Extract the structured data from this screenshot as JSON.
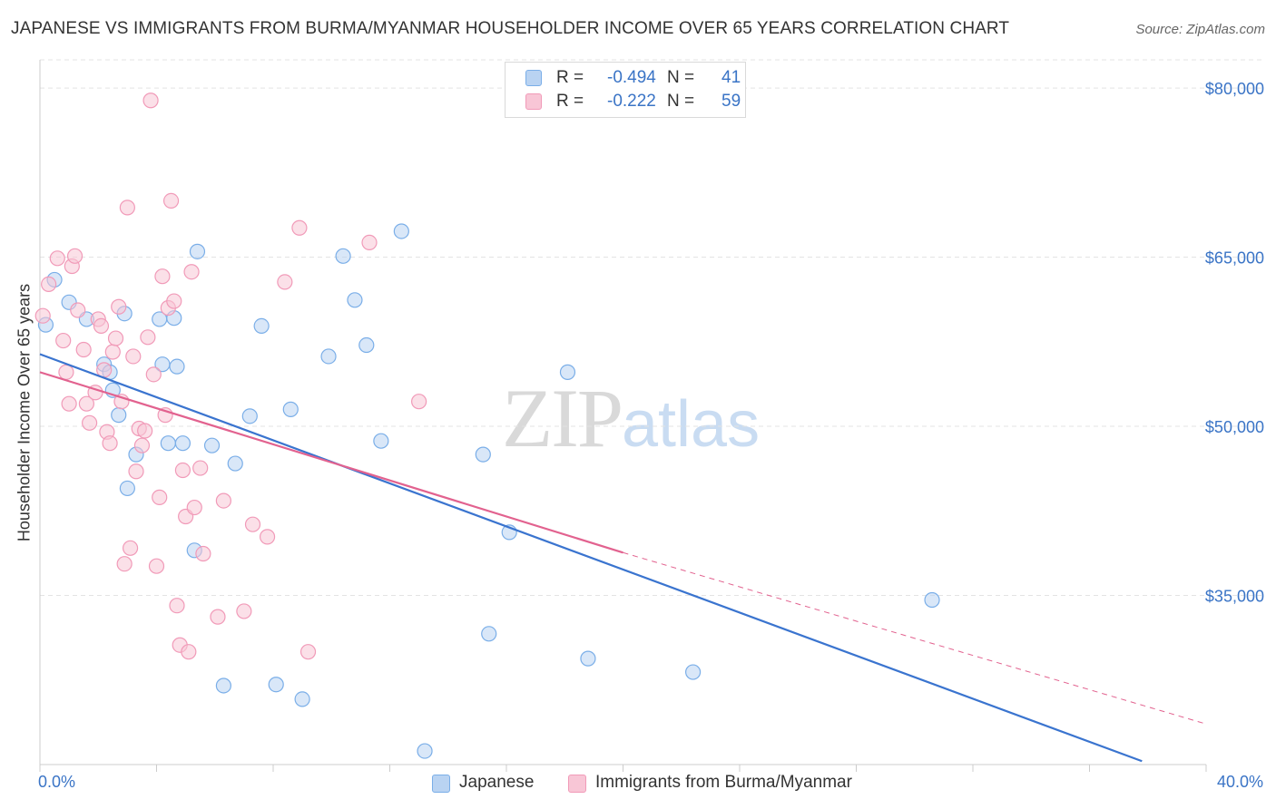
{
  "title": "JAPANESE VS IMMIGRANTS FROM BURMA/MYANMAR HOUSEHOLDER INCOME OVER 65 YEARS CORRELATION CHART",
  "source": "Source: ZipAtlas.com",
  "watermark": {
    "zip": "ZIP",
    "atlas": "atlas"
  },
  "stats_box": {
    "rows": [
      {
        "r_label": "R = ",
        "r_value": "-0.494",
        "n_label": "N = ",
        "n_value": "41",
        "color": "#7aaee8"
      },
      {
        "r_label": "R = ",
        "r_value": "-0.222",
        "n_label": "N = ",
        "n_value": "59",
        "color": "#f19ab8"
      }
    ]
  },
  "colors": {
    "japanese_fill": "#b9d3f2",
    "japanese_stroke": "#7aaee8",
    "japanese_line": "#3a74cf",
    "burma_fill": "#f8c6d6",
    "burma_stroke": "#f19ab8",
    "burma_line": "#e2628f",
    "axis_text": "#3a74c6",
    "grid": "#e3e3e3"
  },
  "chart_data": {
    "type": "scatter",
    "title": "JAPANESE VS IMMIGRANTS FROM BURMA/MYANMAR HOUSEHOLDER INCOME OVER 65 YEARS CORRELATION CHART",
    "xlabel": "",
    "ylabel": "Householder Income Over 65 years",
    "xlim": [
      0,
      40
    ],
    "ylim": [
      20000,
      82500
    ],
    "x_tick_labels": [
      "0.0%",
      "40.0%"
    ],
    "y_ticks": [
      35000,
      50000,
      65000,
      80000
    ],
    "y_tick_labels": [
      "$35,000",
      "$50,000",
      "$65,000",
      "$80,000"
    ],
    "grid": true,
    "legend": "bottom",
    "series": [
      {
        "name": "Japanese",
        "points": [
          [
            0.2,
            59000
          ],
          [
            0.5,
            63000
          ],
          [
            1.0,
            61000
          ],
          [
            1.6,
            59500
          ],
          [
            2.2,
            55500
          ],
          [
            2.4,
            54800
          ],
          [
            2.5,
            53200
          ],
          [
            2.7,
            51000
          ],
          [
            2.9,
            60000
          ],
          [
            3.0,
            44500
          ],
          [
            3.3,
            47500
          ],
          [
            4.1,
            59500
          ],
          [
            4.2,
            55500
          ],
          [
            4.4,
            48500
          ],
          [
            4.6,
            59600
          ],
          [
            4.7,
            55300
          ],
          [
            4.9,
            48500
          ],
          [
            5.3,
            39000
          ],
          [
            5.4,
            65500
          ],
          [
            5.9,
            48300
          ],
          [
            6.3,
            27000
          ],
          [
            6.7,
            46700
          ],
          [
            7.2,
            50900
          ],
          [
            7.6,
            58900
          ],
          [
            8.1,
            27100
          ],
          [
            8.6,
            51500
          ],
          [
            9.0,
            25800
          ],
          [
            9.9,
            56200
          ],
          [
            10.4,
            65100
          ],
          [
            10.8,
            61200
          ],
          [
            11.2,
            57200
          ],
          [
            11.7,
            48700
          ],
          [
            12.4,
            67300
          ],
          [
            13.2,
            21200
          ],
          [
            15.2,
            47500
          ],
          [
            15.4,
            31600
          ],
          [
            16.1,
            40600
          ],
          [
            18.1,
            54800
          ],
          [
            18.8,
            29400
          ],
          [
            22.4,
            28200
          ],
          [
            30.6,
            34600
          ]
        ]
      },
      {
        "name": "Immigrants from Burma/Myanmar",
        "points": [
          [
            0.1,
            59800
          ],
          [
            0.3,
            62600
          ],
          [
            0.6,
            64900
          ],
          [
            0.8,
            57600
          ],
          [
            0.9,
            54800
          ],
          [
            1.0,
            52000
          ],
          [
            1.1,
            64200
          ],
          [
            1.2,
            65100
          ],
          [
            1.3,
            60300
          ],
          [
            1.5,
            56800
          ],
          [
            1.6,
            52000
          ],
          [
            1.7,
            50300
          ],
          [
            1.9,
            53000
          ],
          [
            2.0,
            59500
          ],
          [
            2.1,
            58900
          ],
          [
            2.2,
            55000
          ],
          [
            2.3,
            49500
          ],
          [
            2.4,
            48500
          ],
          [
            2.5,
            56600
          ],
          [
            2.6,
            57800
          ],
          [
            2.7,
            60600
          ],
          [
            2.8,
            52200
          ],
          [
            2.9,
            37800
          ],
          [
            3.0,
            69400
          ],
          [
            3.1,
            39200
          ],
          [
            3.2,
            56200
          ],
          [
            3.3,
            46000
          ],
          [
            3.4,
            49800
          ],
          [
            3.5,
            48300
          ],
          [
            3.6,
            49600
          ],
          [
            3.7,
            57900
          ],
          [
            3.8,
            78900
          ],
          [
            3.9,
            54600
          ],
          [
            4.0,
            37600
          ],
          [
            4.1,
            43700
          ],
          [
            4.2,
            63300
          ],
          [
            4.3,
            51000
          ],
          [
            4.4,
            60500
          ],
          [
            4.5,
            70000
          ],
          [
            4.6,
            61100
          ],
          [
            4.7,
            34100
          ],
          [
            4.8,
            30600
          ],
          [
            4.9,
            46100
          ],
          [
            5.0,
            42000
          ],
          [
            5.1,
            30000
          ],
          [
            5.2,
            63700
          ],
          [
            5.3,
            42800
          ],
          [
            5.5,
            46300
          ],
          [
            5.6,
            38700
          ],
          [
            6.1,
            33100
          ],
          [
            6.3,
            43400
          ],
          [
            7.0,
            33600
          ],
          [
            7.3,
            41300
          ],
          [
            7.8,
            40200
          ],
          [
            8.4,
            62800
          ],
          [
            8.9,
            67600
          ],
          [
            9.2,
            30000
          ],
          [
            11.3,
            66300
          ],
          [
            13.0,
            52200
          ]
        ]
      }
    ],
    "trend_lines": [
      {
        "series": "Japanese",
        "x": [
          0,
          37.8
        ],
        "y": [
          56400,
          20300
        ],
        "dashed_after": null
      },
      {
        "series": "Immigrants from Burma/Myanmar",
        "x": [
          0,
          20.0,
          40.0
        ],
        "y": [
          54800,
          38800,
          23600
        ],
        "dashed_after": 20.0
      }
    ]
  },
  "legend_bottom": [
    {
      "label": "Japanese",
      "color": "#b9d3f2",
      "stroke": "#7aaee8"
    },
    {
      "label": "Immigrants from Burma/Myanmar",
      "color": "#f8c6d6",
      "stroke": "#f19ab8"
    }
  ]
}
